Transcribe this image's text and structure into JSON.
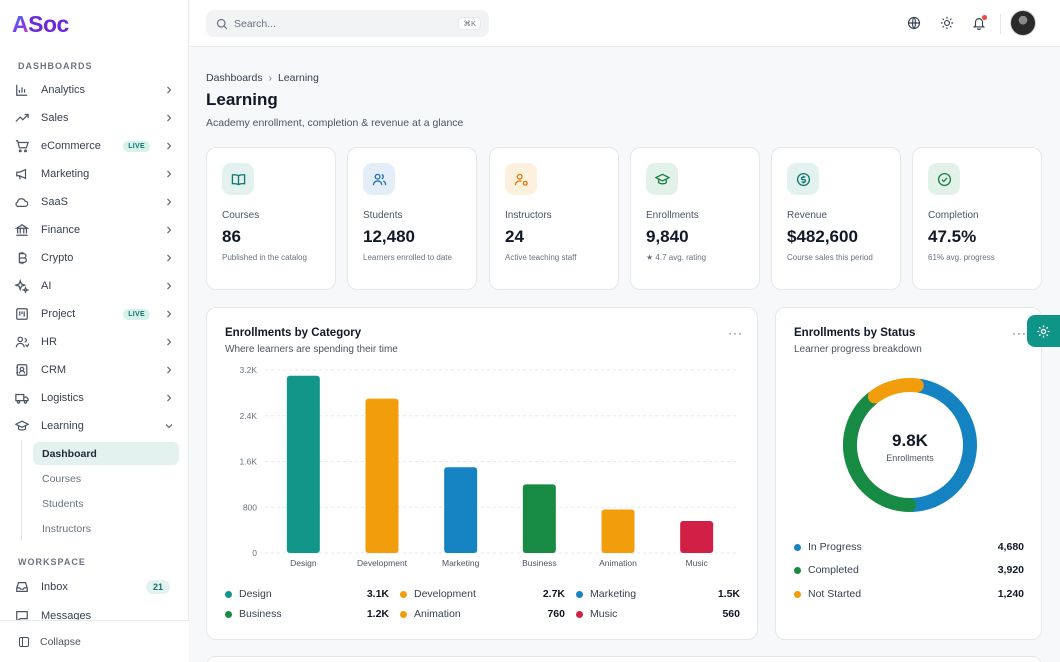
{
  "app": {
    "logo_a": "A",
    "logo_rest": "Soc"
  },
  "sidebar": {
    "section_dashboards": "DASHBOARDS",
    "items": [
      {
        "label": "Analytics",
        "icon": "bar-chart-icon"
      },
      {
        "label": "Sales",
        "icon": "trending-up-icon"
      },
      {
        "label": "eCommerce",
        "icon": "cart-icon",
        "badge": "LIVE"
      },
      {
        "label": "Marketing",
        "icon": "megaphone-icon"
      },
      {
        "label": "SaaS",
        "icon": "cloud-icon"
      },
      {
        "label": "Finance",
        "icon": "bank-icon"
      },
      {
        "label": "Crypto",
        "icon": "bitcoin-icon"
      },
      {
        "label": "AI",
        "icon": "sparkles-icon"
      },
      {
        "label": "Project",
        "icon": "kanban-icon",
        "badge": "LIVE"
      },
      {
        "label": "HR",
        "icon": "users-icon"
      },
      {
        "label": "CRM",
        "icon": "contact-icon"
      },
      {
        "label": "Logistics",
        "icon": "truck-icon"
      },
      {
        "label": "Learning",
        "icon": "graduation-cap-icon"
      }
    ],
    "learning_sub": [
      "Dashboard",
      "Courses",
      "Students",
      "Instructors"
    ],
    "section_workspace": "WORKSPACE",
    "workspace": [
      {
        "label": "Inbox",
        "icon": "inbox-icon",
        "count": "21"
      },
      {
        "label": "Messages",
        "icon": "message-icon"
      }
    ],
    "collapse_label": "Collapse"
  },
  "topbar": {
    "search_placeholder": "Search...",
    "shortcut": "⌘K"
  },
  "breadcrumb": {
    "parent": "Dashboards",
    "current": "Learning"
  },
  "page": {
    "title": "Learning",
    "subtitle": "Academy enrollment, completion & revenue at a glance"
  },
  "kpis": [
    {
      "label": "Courses",
      "value": "86",
      "note": "Published in the catalog",
      "icon": "book-open-icon",
      "bg": "#e3f2ef",
      "fg": "#0f766e"
    },
    {
      "label": "Students",
      "value": "12,480",
      "note": "Learners enrolled to date",
      "icon": "users-icon",
      "bg": "#e4eef8",
      "fg": "#1d6fb8"
    },
    {
      "label": "Instructors",
      "value": "24",
      "note": "Active teaching staff",
      "icon": "user-cog-icon",
      "bg": "#fdf0dc",
      "fg": "#d97706"
    },
    {
      "label": "Enrollments",
      "value": "9,840",
      "note": "★ 4.7 avg. rating",
      "icon": "graduation-cap-icon",
      "bg": "#e3f2e8",
      "fg": "#15803d"
    },
    {
      "label": "Revenue",
      "value": "$482,600",
      "note": "Course sales this period",
      "icon": "dollar-circle-icon",
      "bg": "#e3f2ef",
      "fg": "#0f766e"
    },
    {
      "label": "Completion",
      "value": "47.5%",
      "note": "61% avg. progress",
      "icon": "check-circle-icon",
      "bg": "#e3f2e8",
      "fg": "#15803d"
    }
  ],
  "category_card": {
    "title": "Enrollments by Category",
    "subtitle": "Where learners are spending their time",
    "menu": "···"
  },
  "status_card": {
    "title": "Enrollments by Status",
    "subtitle": "Learner progress breakdown",
    "menu": "···",
    "center_value": "9.8K",
    "center_label": "Enrollments"
  },
  "chart_data": [
    {
      "type": "bar",
      "categories": [
        "Design",
        "Development",
        "Marketing",
        "Business",
        "Animation",
        "Music"
      ],
      "values": [
        3100,
        2700,
        1500,
        1200,
        760,
        560
      ],
      "value_labels": [
        "3.1K",
        "2.7K",
        "1.5K",
        "1.2K",
        "760",
        "560"
      ],
      "colors": [
        "#12968a",
        "#f29d0b",
        "#1583c1",
        "#178a43",
        "#f29d0b",
        "#d21f46"
      ],
      "ylim": [
        0,
        3200
      ],
      "yticks": [
        0,
        800,
        1600,
        2400,
        3200
      ],
      "ytick_labels": [
        "0",
        "800",
        "1.6K",
        "2.4K",
        "3.2K"
      ],
      "grid": true
    },
    {
      "type": "pie",
      "categories": [
        "In Progress",
        "Completed",
        "Not Started"
      ],
      "values": [
        4680,
        3920,
        1240
      ],
      "value_labels": [
        "4,680",
        "3,920",
        "1,240"
      ],
      "colors": [
        "#1583c1",
        "#178a43",
        "#f29d0b"
      ]
    }
  ]
}
